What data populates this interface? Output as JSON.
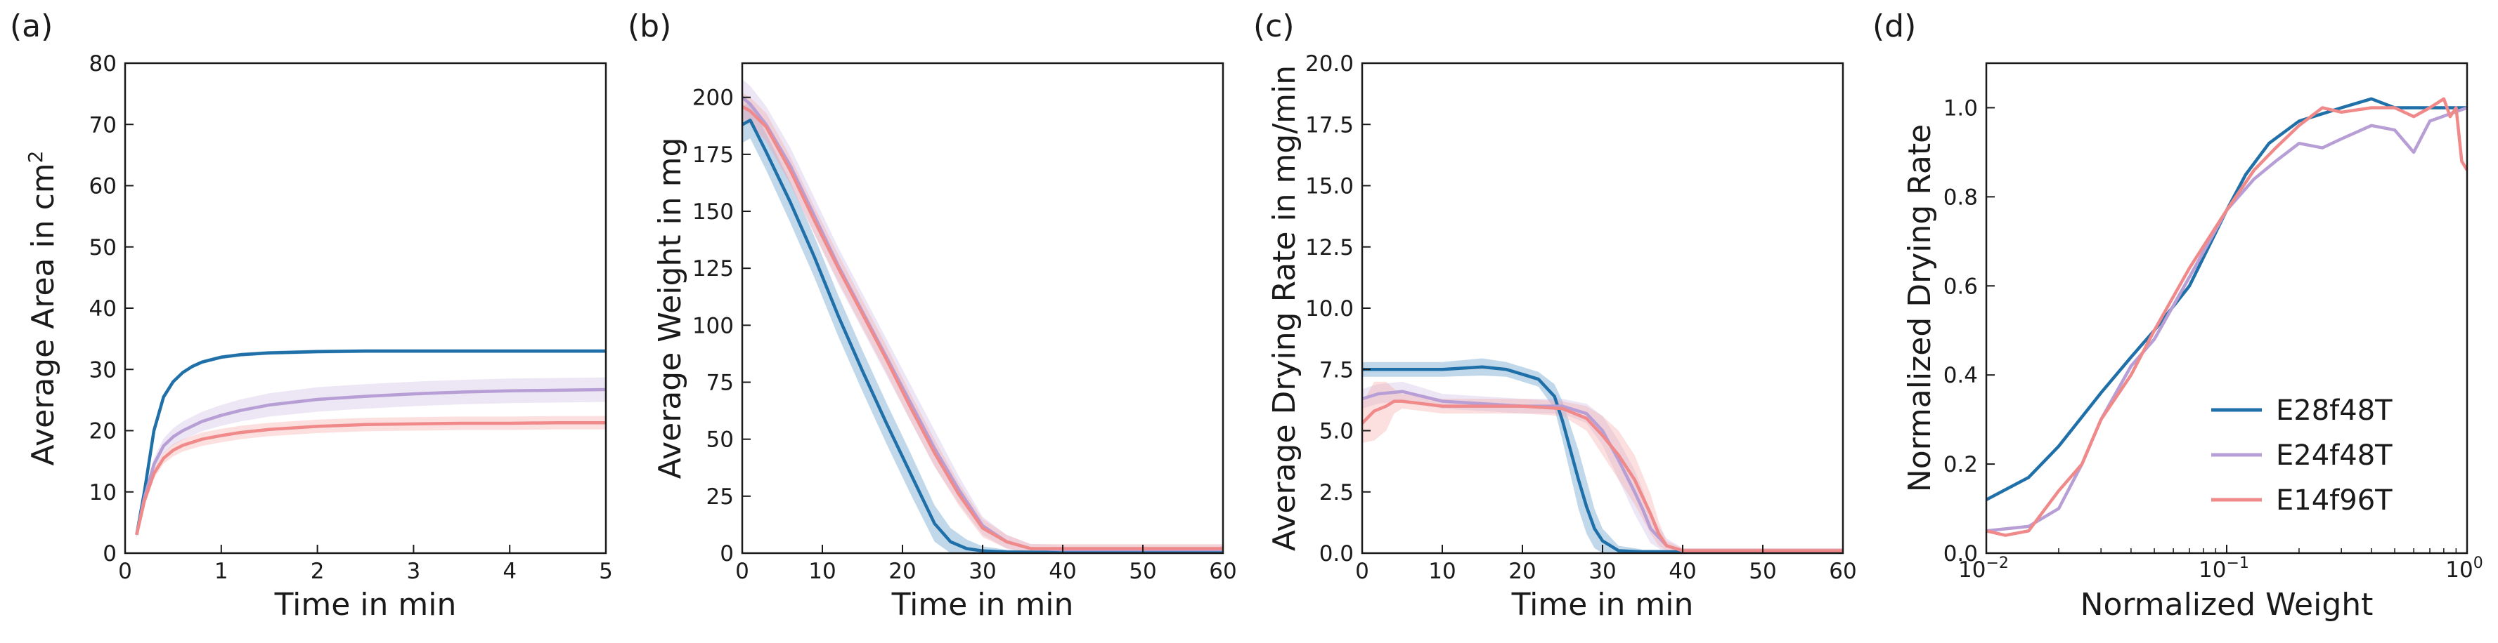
{
  "chart_data": [
    {
      "panel": "(a)",
      "type": "line",
      "xlabel": "Time in min",
      "ylabel": "Average Area in cm",
      "ylabel_sup": "2",
      "xlim": [
        0,
        5
      ],
      "ylim": [
        0,
        80
      ],
      "xticks": [
        "0",
        "1",
        "2",
        "3",
        "4",
        "5"
      ],
      "yticks": [
        "0",
        "10",
        "20",
        "30",
        "40",
        "50",
        "60",
        "70",
        "80"
      ],
      "series": [
        {
          "name": "E28f48T",
          "color": "#1f6fa8",
          "band_color": "#1f6fa8",
          "x": [
            0.12,
            0.2,
            0.3,
            0.4,
            0.5,
            0.6,
            0.7,
            0.8,
            1.0,
            1.2,
            1.5,
            2.0,
            2.5,
            3.0,
            3.5,
            4.0,
            4.5,
            5.0
          ],
          "y": [
            3,
            10,
            20,
            25.5,
            28,
            29.5,
            30.5,
            31.2,
            32,
            32.4,
            32.7,
            32.9,
            33,
            33,
            33,
            33,
            33,
            33
          ],
          "band": [
            0.3,
            0.3,
            0.3,
            0.3,
            0.3,
            0.3,
            0.3,
            0.3,
            0.3,
            0.3,
            0.3,
            0.3,
            0.3,
            0.3,
            0.3,
            0.3,
            0.3,
            0.3
          ]
        },
        {
          "name": "E24f48T",
          "color": "#b79fd6",
          "band_color": "#c9b6e2",
          "x": [
            0.12,
            0.2,
            0.3,
            0.4,
            0.5,
            0.6,
            0.8,
            1.0,
            1.2,
            1.5,
            2.0,
            2.5,
            3.0,
            3.5,
            4.0,
            4.5,
            5.0
          ],
          "y": [
            3,
            9,
            14.5,
            17.5,
            19,
            20,
            21.5,
            22.5,
            23.3,
            24.2,
            25.1,
            25.6,
            26,
            26.3,
            26.5,
            26.6,
            26.7
          ],
          "band": [
            0.5,
            0.8,
            1.0,
            1.2,
            1.4,
            1.5,
            1.6,
            1.7,
            1.8,
            1.9,
            2.0,
            2.0,
            2.0,
            2.0,
            2.0,
            2.0,
            2.0
          ]
        },
        {
          "name": "E14f96T",
          "color": "#f08a8a",
          "band_color": "#f5a5a5",
          "x": [
            0.12,
            0.2,
            0.3,
            0.4,
            0.5,
            0.6,
            0.8,
            1.0,
            1.2,
            1.5,
            2.0,
            2.5,
            3.0,
            3.5,
            4.0,
            4.5,
            5.0
          ],
          "y": [
            3,
            8.5,
            13,
            15.5,
            16.8,
            17.6,
            18.6,
            19.2,
            19.7,
            20.2,
            20.7,
            21,
            21.1,
            21.2,
            21.2,
            21.3,
            21.3
          ],
          "band": [
            0.4,
            0.6,
            0.8,
            0.9,
            1.0,
            1.0,
            1.1,
            1.1,
            1.1,
            1.1,
            1.1,
            1.1,
            1.1,
            1.1,
            1.1,
            1.1,
            1.1
          ]
        }
      ]
    },
    {
      "panel": "(b)",
      "type": "line",
      "xlabel": "Time in min",
      "ylabel": "Average Weight in mg",
      "xlim": [
        0,
        60
      ],
      "ylim": [
        0,
        215
      ],
      "xticks": [
        "0",
        "10",
        "20",
        "30",
        "40",
        "50",
        "60"
      ],
      "yticks": [
        "0",
        "25",
        "50",
        "75",
        "100",
        "125",
        "150",
        "175",
        "200"
      ],
      "ytick_values": [
        0,
        25,
        50,
        75,
        100,
        125,
        150,
        175,
        200
      ],
      "series": [
        {
          "name": "E28f48T",
          "color": "#1f6fa8",
          "band_color": "#4a90c4",
          "x": [
            0,
            1,
            3,
            6,
            9,
            12,
            15,
            18,
            21,
            24,
            26,
            28,
            30,
            33,
            40,
            50,
            60
          ],
          "y": [
            188,
            190,
            176,
            154,
            130,
            104,
            80,
            57,
            35,
            13,
            5,
            2,
            1,
            0.5,
            0.3,
            0.3,
            0.3
          ],
          "band": [
            8,
            8,
            8,
            9,
            9,
            9,
            9,
            9,
            9,
            8,
            6,
            4,
            2,
            1,
            0.5,
            0.5,
            0.5
          ]
        },
        {
          "name": "E24f48T",
          "color": "#b79fd6",
          "band_color": "#c9b6e2",
          "x": [
            0,
            1,
            3,
            6,
            9,
            12,
            15,
            18,
            21,
            24,
            27,
            30,
            33,
            36,
            40,
            50,
            60
          ],
          "y": [
            200,
            197,
            188,
            170,
            148,
            126,
            106,
            86,
            66,
            46,
            28,
            12,
            5,
            2,
            1.5,
            1.5,
            1.5
          ],
          "band": [
            8,
            8,
            8,
            8,
            8,
            8,
            8,
            8,
            8,
            8,
            6,
            4,
            3,
            2,
            2,
            2,
            2
          ]
        },
        {
          "name": "E14f96T",
          "color": "#f08a8a",
          "band_color": "#f5a5a5",
          "x": [
            0,
            1,
            3,
            6,
            9,
            12,
            15,
            18,
            21,
            24,
            27,
            30,
            33,
            36,
            40,
            50,
            60
          ],
          "y": [
            196,
            194,
            187,
            168,
            146,
            125,
            105,
            85,
            64,
            44,
            26,
            11,
            5,
            2,
            2,
            2,
            2
          ],
          "band": [
            6,
            6,
            6,
            6,
            6,
            6,
            6,
            6,
            6,
            6,
            5,
            4,
            3,
            2,
            2,
            2,
            2
          ]
        }
      ]
    },
    {
      "panel": "(c)",
      "type": "line",
      "xlabel": "Time in min",
      "ylabel": "Average Drying Rate in mg/min",
      "xlim": [
        0,
        60
      ],
      "ylim": [
        0,
        20
      ],
      "xticks": [
        "0",
        "10",
        "20",
        "30",
        "40",
        "50",
        "60"
      ],
      "yticks": [
        "0.0",
        "2.5",
        "5.0",
        "7.5",
        "10.0",
        "12.5",
        "15.0",
        "17.5",
        "20.0"
      ],
      "ytick_values": [
        0,
        2.5,
        5,
        7.5,
        10,
        12.5,
        15,
        17.5,
        20
      ],
      "series": [
        {
          "name": "E28f48T",
          "color": "#1f6fa8",
          "band_color": "#4a90c4",
          "x": [
            0,
            2,
            5,
            10,
            15,
            18,
            20,
            22,
            24,
            25,
            26,
            27,
            28,
            29,
            30,
            32,
            35,
            40,
            50,
            60
          ],
          "y": [
            7.5,
            7.5,
            7.5,
            7.5,
            7.6,
            7.5,
            7.3,
            7.1,
            6.4,
            5.4,
            4.2,
            3.0,
            1.9,
            1.0,
            0.5,
            0.1,
            0.05,
            0.05,
            0.05,
            0.05
          ],
          "band": [
            0.3,
            0.3,
            0.3,
            0.3,
            0.35,
            0.3,
            0.3,
            0.3,
            0.5,
            0.8,
            1.0,
            1.2,
            1.1,
            0.8,
            0.5,
            0.2,
            0.1,
            0.1,
            0.1,
            0.1
          ]
        },
        {
          "name": "E24f48T",
          "color": "#b79fd6",
          "band_color": "#c9b6e2",
          "x": [
            0,
            2,
            5,
            10,
            15,
            20,
            25,
            28,
            30,
            32,
            34,
            35,
            36,
            38,
            40,
            45,
            50,
            55,
            60
          ],
          "y": [
            6.3,
            6.5,
            6.6,
            6.2,
            6.1,
            6.0,
            6.0,
            5.7,
            5.0,
            3.8,
            2.5,
            1.8,
            1.0,
            0.3,
            0.1,
            0.1,
            0.1,
            0.1,
            0.1
          ],
          "band": [
            0.4,
            0.4,
            0.4,
            0.3,
            0.3,
            0.3,
            0.3,
            0.4,
            0.6,
            0.8,
            0.9,
            0.8,
            0.6,
            0.3,
            0.1,
            0.1,
            0.1,
            0.1,
            0.1
          ]
        },
        {
          "name": "E14f96T",
          "color": "#f08a8a",
          "band_color": "#f5a5a5",
          "x": [
            0,
            1.5,
            3,
            4,
            5,
            10,
            15,
            20,
            25,
            28,
            30,
            32,
            34,
            36,
            37,
            38,
            40,
            45,
            50,
            55,
            60
          ],
          "y": [
            5.3,
            5.8,
            6.0,
            6.2,
            6.2,
            6.0,
            6.0,
            6.0,
            5.9,
            5.5,
            4.8,
            4.0,
            3.0,
            1.6,
            0.8,
            0.3,
            0.1,
            0.1,
            0.1,
            0.1,
            0.1
          ],
          "band": [
            0.8,
            1.2,
            1.0,
            0.5,
            0.3,
            0.3,
            0.3,
            0.3,
            0.3,
            0.5,
            0.8,
            1.0,
            1.0,
            0.8,
            0.5,
            0.2,
            0.1,
            0.1,
            0.1,
            0.1,
            0.1
          ]
        }
      ]
    },
    {
      "panel": "(d)",
      "type": "line",
      "xscale": "log",
      "xlabel": "Normalized Weight",
      "ylabel": "Normalized Drying Rate",
      "xlim": [
        0.01,
        1
      ],
      "ylim": [
        0,
        1.1
      ],
      "xticks": [
        "10",
        "10",
        "10"
      ],
      "xtick_exponents": [
        "−2",
        "−1",
        "0"
      ],
      "xtick_values": [
        0.01,
        0.1,
        1
      ],
      "yticks": [
        "0.0",
        "0.2",
        "0.4",
        "0.6",
        "0.8",
        "1.0"
      ],
      "ytick_values": [
        0,
        0.2,
        0.4,
        0.6,
        0.8,
        1.0
      ],
      "legend": {
        "placement": "lower-right",
        "entries": [
          "E28f48T",
          "E24f48T",
          "E14f96T"
        ]
      },
      "series": [
        {
          "name": "E28f48T",
          "color": "#1f6fa8",
          "x": [
            0.01,
            0.015,
            0.02,
            0.03,
            0.04,
            0.05,
            0.07,
            0.1,
            0.12,
            0.15,
            0.2,
            0.3,
            0.4,
            0.5,
            0.7,
            1.0
          ],
          "y": [
            0.12,
            0.17,
            0.24,
            0.36,
            0.44,
            0.5,
            0.6,
            0.77,
            0.85,
            0.92,
            0.97,
            1.0,
            1.02,
            1.0,
            1.0,
            1.0
          ]
        },
        {
          "name": "E24f48T",
          "color": "#b79fd6",
          "x": [
            0.01,
            0.015,
            0.02,
            0.025,
            0.03,
            0.04,
            0.05,
            0.07,
            0.1,
            0.13,
            0.16,
            0.2,
            0.25,
            0.3,
            0.4,
            0.5,
            0.6,
            0.7,
            1.0
          ],
          "y": [
            0.05,
            0.06,
            0.1,
            0.2,
            0.3,
            0.42,
            0.48,
            0.62,
            0.77,
            0.84,
            0.88,
            0.92,
            0.91,
            0.93,
            0.96,
            0.95,
            0.9,
            0.97,
            1.0
          ]
        },
        {
          "name": "E14f96T",
          "color": "#f08a8a",
          "x": [
            0.01,
            0.012,
            0.015,
            0.02,
            0.025,
            0.03,
            0.04,
            0.05,
            0.07,
            0.1,
            0.13,
            0.16,
            0.2,
            0.25,
            0.3,
            0.4,
            0.5,
            0.6,
            0.7,
            0.8,
            0.85,
            0.9,
            0.95,
            1.0
          ],
          "y": [
            0.05,
            0.04,
            0.05,
            0.14,
            0.2,
            0.3,
            0.4,
            0.5,
            0.64,
            0.77,
            0.86,
            0.91,
            0.96,
            1.0,
            0.99,
            1.0,
            1.0,
            0.98,
            1.0,
            1.02,
            0.98,
            1.0,
            0.88,
            0.86
          ]
        }
      ]
    }
  ]
}
